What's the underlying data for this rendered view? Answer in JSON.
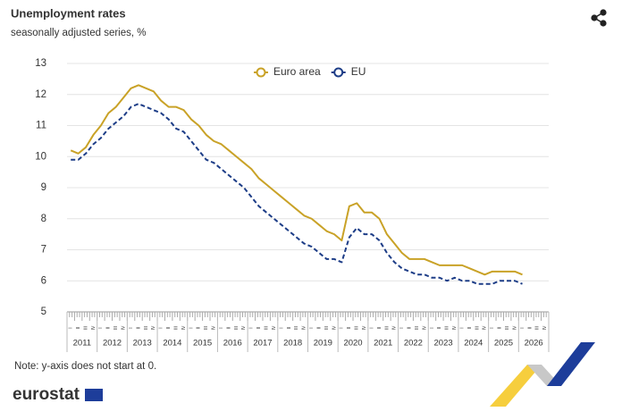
{
  "chart_data": {
    "type": "line",
    "title": "Unemployment rates",
    "subtitle": "seasonally adjusted series, %",
    "note": "Note: y-axis does not start at 0.",
    "brand": "eurostat",
    "years": [
      "2011",
      "2012",
      "2013",
      "2014",
      "2015",
      "2016",
      "2017",
      "2018",
      "2019",
      "2020",
      "2021",
      "2022",
      "2023",
      "2024",
      "2025",
      "2026"
    ],
    "categories": [
      "I",
      "II",
      "III",
      "IV",
      "I",
      "II",
      "III",
      "IV",
      "I",
      "II",
      "III",
      "IV",
      "I",
      "II",
      "III",
      "IV",
      "I",
      "II",
      "III",
      "IV",
      "I",
      "II",
      "III",
      "IV",
      "I",
      "II",
      "III",
      "IV",
      "I",
      "II",
      "III",
      "IV",
      "I",
      "II",
      "III",
      "IV",
      "I",
      "II",
      "III",
      "IV",
      "I",
      "II",
      "III",
      "IV",
      "I",
      "II",
      "III",
      "IV",
      "I",
      "II",
      "III",
      "IV",
      "I",
      "II",
      "III",
      "IV",
      "I",
      "II",
      "III",
      "IV",
      "I",
      "II",
      "III",
      "IV"
    ],
    "series": [
      {
        "name": "Euro area",
        "color": "#c9a227",
        "dashed": false,
        "values": [
          10.2,
          10.1,
          10.3,
          10.7,
          11.0,
          11.4,
          11.6,
          11.9,
          12.2,
          12.3,
          12.2,
          12.1,
          11.8,
          11.6,
          11.6,
          11.5,
          11.2,
          11.0,
          10.7,
          10.5,
          10.4,
          10.2,
          10.0,
          9.8,
          9.6,
          9.3,
          9.1,
          8.9,
          8.7,
          8.5,
          8.3,
          8.1,
          8.0,
          7.8,
          7.6,
          7.5,
          7.3,
          8.4,
          8.5,
          8.2,
          8.2,
          8.0,
          7.5,
          7.2,
          6.9,
          6.7,
          6.7,
          6.7,
          6.6,
          6.5,
          6.5,
          6.5,
          6.5,
          6.4,
          6.3,
          6.2,
          6.3,
          6.3,
          6.3,
          6.3,
          6.2,
          null,
          null,
          null
        ]
      },
      {
        "name": "EU",
        "color": "#1d3d87",
        "dashed": true,
        "values": [
          9.9,
          9.9,
          10.1,
          10.4,
          10.6,
          10.9,
          11.1,
          11.3,
          11.6,
          11.7,
          11.6,
          11.5,
          11.4,
          11.2,
          10.9,
          10.8,
          10.5,
          10.2,
          9.9,
          9.8,
          9.6,
          9.4,
          9.2,
          9.0,
          8.7,
          8.4,
          8.2,
          8.0,
          7.8,
          7.6,
          7.4,
          7.2,
          7.1,
          6.9,
          6.7,
          6.7,
          6.6,
          7.4,
          7.7,
          7.5,
          7.5,
          7.3,
          6.9,
          6.6,
          6.4,
          6.3,
          6.2,
          6.2,
          6.1,
          6.1,
          6.0,
          6.1,
          6.0,
          6.0,
          5.9,
          5.9,
          5.9,
          6.0,
          6.0,
          6.0,
          5.9,
          null,
          null,
          null
        ]
      }
    ],
    "ylim": [
      5,
      13
    ],
    "yticks": [
      5,
      6,
      7,
      8,
      9,
      10,
      11,
      12,
      13
    ],
    "grid": true
  }
}
